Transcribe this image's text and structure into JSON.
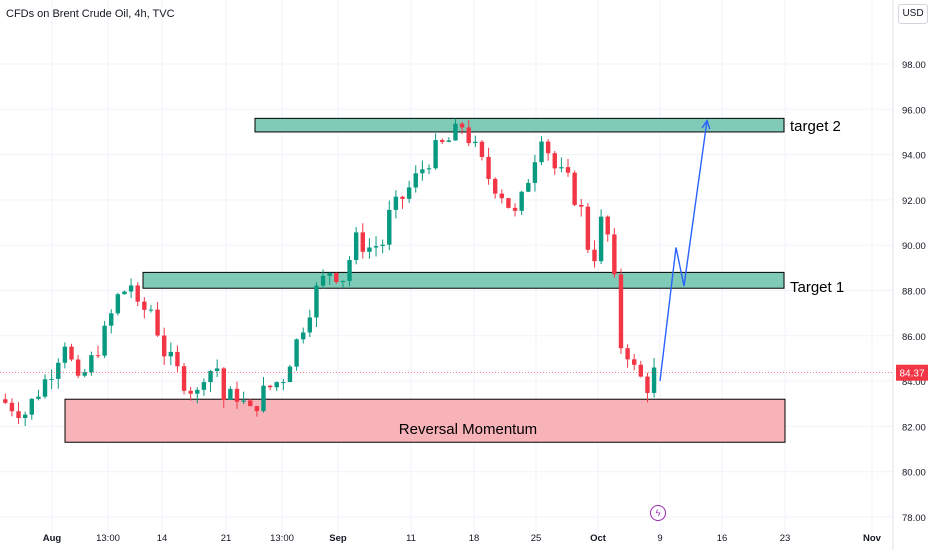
{
  "header": {
    "symbol": "CFDs on Brent Crude Oil, 4h, TVC",
    "currency": "USD"
  },
  "colors": {
    "up": "#089981",
    "down": "#f23645",
    "zone_green": "#80cbb8",
    "zone_red": "#f8b3b8",
    "projection": "#2962ff",
    "price_tag": "#f23645",
    "grid": "#f0f3fa"
  },
  "chart_data": {
    "type": "candlestick",
    "title": "CFDs on Brent Crude Oil, 4h, TVC",
    "ylim": [
      78,
      100
    ],
    "y_ticks": [
      78,
      80,
      82,
      84,
      86,
      88,
      90,
      92,
      94,
      96,
      98
    ],
    "y_tick_labels": [
      "78.00",
      "80.00",
      "82.00",
      "84.00",
      "86.00",
      "88.00",
      "90.00",
      "92.00",
      "94.00",
      "96.00",
      "98.00"
    ],
    "x_ticks": [
      "Aug",
      "13:00",
      "14",
      "21",
      "13:00",
      "Sep",
      "11",
      "18",
      "25",
      "Oct",
      "9",
      "16",
      "23",
      "Nov"
    ],
    "last_price": 84.37,
    "last_price_label": "84.37",
    "path": [
      [
        0,
        83.2
      ],
      [
        4,
        82.6
      ],
      [
        8,
        84.5
      ],
      [
        10,
        85.8
      ],
      [
        12,
        83.8
      ],
      [
        14,
        84.9
      ],
      [
        16,
        86.1
      ],
      [
        18,
        87.7
      ],
      [
        20,
        88.3
      ],
      [
        21,
        87.1
      ],
      [
        23,
        87.2
      ],
      [
        25,
        85.3
      ],
      [
        28,
        84.0
      ],
      [
        30,
        83.4
      ],
      [
        31,
        84.4
      ],
      [
        33,
        84.6
      ],
      [
        34,
        83.2
      ],
      [
        36,
        83.4
      ],
      [
        38,
        82.6
      ],
      [
        40,
        83.5
      ],
      [
        43,
        84.2
      ],
      [
        46,
        86.5
      ],
      [
        48,
        88.0
      ],
      [
        50,
        88.9
      ],
      [
        52,
        88.6
      ],
      [
        54,
        90.2
      ],
      [
        56,
        89.9
      ],
      [
        58,
        90.1
      ],
      [
        59,
        91.3
      ],
      [
        62,
        92.5
      ],
      [
        64,
        93.4
      ],
      [
        66,
        94.2
      ],
      [
        68,
        94.6
      ],
      [
        70,
        95.3
      ],
      [
        72,
        94.2
      ],
      [
        74,
        93.0
      ],
      [
        76,
        92.3
      ],
      [
        78,
        91.3
      ],
      [
        79,
        92.0
      ],
      [
        81,
        94.0
      ],
      [
        82,
        95.0
      ],
      [
        84,
        93.4
      ],
      [
        86,
        92.8
      ],
      [
        88,
        91.5
      ],
      [
        89,
        90.0
      ],
      [
        90,
        89.6
      ],
      [
        91,
        91.0
      ],
      [
        92,
        90.4
      ],
      [
        93,
        88.3
      ],
      [
        94,
        85.6
      ],
      [
        95,
        85.3
      ],
      [
        96,
        84.5
      ],
      [
        97,
        84.1
      ],
      [
        98,
        83.8
      ],
      [
        99,
        84.37
      ]
    ],
    "zones": [
      {
        "name": "Reversal Momentum",
        "from": 81.3,
        "to": 83.2,
        "type": "support"
      },
      {
        "name": "Target 1",
        "from": 88.1,
        "to": 88.8,
        "type": "target"
      },
      {
        "name": "target 2",
        "from": 95.0,
        "to": 95.6,
        "type": "target"
      }
    ],
    "projection": [
      [
        84.0,
        "Oct 9"
      ],
      [
        89.9,
        "Oct 11"
      ],
      [
        88.2,
        "Oct 12"
      ],
      [
        95.5,
        "Oct 15"
      ]
    ],
    "annotations": [
      "Reversal Momentum",
      "Target 1",
      "target 2"
    ]
  }
}
